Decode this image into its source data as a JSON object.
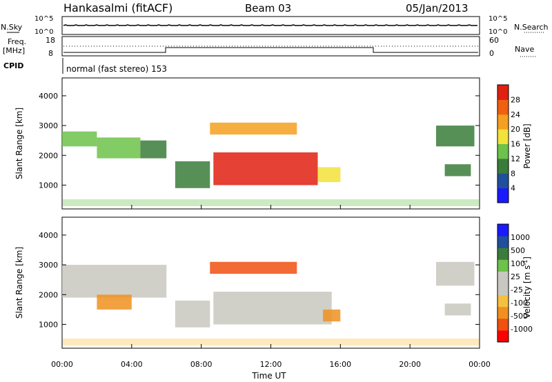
{
  "header": {
    "station": "Hankasalmi (fitACF)",
    "beam": "Beam 03",
    "date": "05/Jan/2013"
  },
  "param_panels": {
    "nsky_label": "N.Sky",
    "nsearch_label": "N.Search",
    "noise_ticks": [
      "10^5",
      "10^0"
    ],
    "freq_label_1": "Freq.",
    "freq_label_2": "[MHz]",
    "freq_ticks": [
      "18",
      "8"
    ],
    "nave_label": "Nave",
    "nave_ticks": [
      "60",
      "0"
    ],
    "cpid_label": "CPID",
    "cpid_text": "normal (fast stereo) 153"
  },
  "colors": {
    "power_scale": [
      "#1a1aff",
      "#204f9c",
      "#3a7d3a",
      "#6cc24a",
      "#f2e23a",
      "#f5a020",
      "#f06010",
      "#e02010"
    ],
    "velocity_scale": [
      "#ff0000",
      "#f05010",
      "#f09020",
      "#f5c040",
      "#c8c8c0",
      "#c8c8c0",
      "#6cc24a",
      "#3a7d3a",
      "#204f9c",
      "#1a1aff"
    ]
  },
  "chart_data": [
    {
      "type": "heatmap",
      "ylabel": "Slant Range [km]",
      "colorbar_label": "Power [dB]",
      "colorbar_ticks": [
        "4",
        "8",
        "12",
        "16",
        "20",
        "24",
        "28"
      ],
      "y_ticks": [
        "1000",
        "2000",
        "3000",
        "4000"
      ],
      "ylim": [
        200,
        4600
      ],
      "xlim": [
        0,
        24
      ],
      "regions": [
        {
          "t0": 0.0,
          "t1": 2.0,
          "r0": 2300,
          "r1": 2800,
          "level": 3
        },
        {
          "t0": 2.0,
          "t1": 4.5,
          "r0": 1900,
          "r1": 2600,
          "level": 3
        },
        {
          "t0": 4.5,
          "t1": 6.0,
          "r0": 1900,
          "r1": 2500,
          "level": 2
        },
        {
          "t0": 6.5,
          "t1": 8.5,
          "r0": 900,
          "r1": 1800,
          "level": 2
        },
        {
          "t0": 8.5,
          "t1": 13.5,
          "r0": 2700,
          "r1": 3100,
          "level": 5
        },
        {
          "t0": 8.7,
          "t1": 14.7,
          "r0": 1000,
          "r1": 2100,
          "level": 7
        },
        {
          "t0": 14.7,
          "t1": 16.0,
          "r0": 1100,
          "r1": 1600,
          "level": 4
        },
        {
          "t0": 21.5,
          "t1": 23.7,
          "r0": 2300,
          "r1": 3000,
          "level": 2
        },
        {
          "t0": 22.0,
          "t1": 23.5,
          "r0": 1300,
          "r1": 1700,
          "level": 2
        }
      ]
    },
    {
      "type": "heatmap",
      "ylabel": "Slant Range [km]",
      "colorbar_label": "Velocity [m s^-1]",
      "colorbar_ticks": [
        "-1000",
        "-500",
        "-100",
        "-25",
        "25",
        "100",
        "500",
        "1000"
      ],
      "y_ticks": [
        "1000",
        "2000",
        "3000",
        "4000"
      ],
      "ylim": [
        200,
        4600
      ],
      "xlim": [
        0,
        24
      ],
      "regions": [
        {
          "t0": 0.0,
          "t1": 6.0,
          "r0": 1900,
          "r1": 3000,
          "level": 4
        },
        {
          "t0": 2.0,
          "t1": 4.0,
          "r0": 1500,
          "r1": 2000,
          "level": 2
        },
        {
          "t0": 6.5,
          "t1": 8.5,
          "r0": 900,
          "r1": 1800,
          "level": 4
        },
        {
          "t0": 8.5,
          "t1": 13.5,
          "r0": 2700,
          "r1": 3100,
          "level": 1
        },
        {
          "t0": 8.7,
          "t1": 15.5,
          "r0": 1000,
          "r1": 2100,
          "level": 4
        },
        {
          "t0": 15.0,
          "t1": 16.0,
          "r0": 1100,
          "r1": 1500,
          "level": 2
        },
        {
          "t0": 21.5,
          "t1": 23.7,
          "r0": 2300,
          "r1": 3100,
          "level": 4
        },
        {
          "t0": 22.0,
          "t1": 23.5,
          "r0": 1300,
          "r1": 1700,
          "level": 4
        }
      ]
    }
  ],
  "x_axis": {
    "ticks": [
      "00:00",
      "04:00",
      "08:00",
      "12:00",
      "16:00",
      "20:00",
      "00:00"
    ],
    "label": "Time UT"
  }
}
